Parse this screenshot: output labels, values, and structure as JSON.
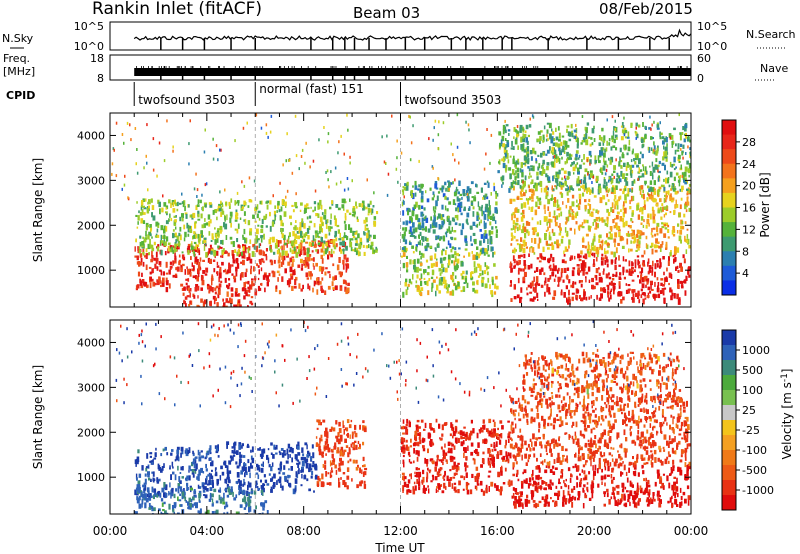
{
  "header": {
    "title": "Rankin Inlet (fitACF)",
    "beam": "Beam 03",
    "date": "08/Feb/2015"
  },
  "noise_panel": {
    "left_label": "N.Sky",
    "left_ticks": [
      "10^5",
      "10^0"
    ],
    "right_label": "N.Search",
    "right_ticks": [
      "10^5",
      "10^0"
    ]
  },
  "freq_panel": {
    "left_label_top": "Freq.",
    "left_label_bottom": "[MHz]",
    "left_ticks": [
      "18",
      "8"
    ],
    "right_label": "Nave",
    "right_ticks": [
      "60",
      "0"
    ]
  },
  "cpid": {
    "label": "CPID",
    "segments": [
      {
        "start_hour": 1.0,
        "label": "twofsound 3503"
      },
      {
        "start_hour": 6.0,
        "label": "normal (fast) 151"
      },
      {
        "start_hour": 12.0,
        "label": "twofsound 3503"
      }
    ]
  },
  "chart_data": [
    {
      "type": "heatmap",
      "title": "",
      "xlabel": "Time UT",
      "ylabel": "Slant Range [km]",
      "x_ticks": [
        "00:00",
        "04:00",
        "08:00",
        "12:00",
        "16:00",
        "20:00",
        "00:00"
      ],
      "xlim_hours": [
        0,
        24
      ],
      "ylim_km": [
        180,
        4500
      ],
      "y_ticks": [
        1000,
        2000,
        3000,
        4000
      ],
      "colorbar": {
        "label": "Power [dB]",
        "ticks": [
          "4",
          "8",
          "12",
          "16",
          "20",
          "24",
          "28"
        ],
        "range": [
          0,
          30
        ],
        "colors": [
          "#0a2ee6",
          "#1e5bd8",
          "#2b7fb0",
          "#3d9a70",
          "#55b23a",
          "#9ccc2a",
          "#e6d21e",
          "#f5a01e",
          "#f3731c",
          "#ee4a1a",
          "#e8261a",
          "#e00e10"
        ]
      },
      "regions": [
        {
          "t0": 1.0,
          "t1": 6.8,
          "r0": 600,
          "r1": 1600,
          "value": 27
        },
        {
          "t0": 6.8,
          "t1": 9.8,
          "r0": 550,
          "r1": 1700,
          "value": 24
        },
        {
          "t0": 1.0,
          "t1": 11.0,
          "r0": 1400,
          "r1": 2600,
          "value": 13
        },
        {
          "t0": 3.0,
          "t1": 6.0,
          "r0": 200,
          "r1": 700,
          "value": 26
        },
        {
          "t0": 12.0,
          "t1": 16.0,
          "r0": 500,
          "r1": 1500,
          "value": 14
        },
        {
          "t0": 12.0,
          "t1": 16.0,
          "r0": 1500,
          "r1": 3000,
          "value": 9
        },
        {
          "t0": 16.5,
          "t1": 23.9,
          "r0": 350,
          "r1": 1400,
          "value": 28
        },
        {
          "t0": 16.5,
          "t1": 23.9,
          "r0": 1400,
          "r1": 2900,
          "value": 17
        },
        {
          "t0": 16.0,
          "t1": 24.0,
          "r0": 2800,
          "r1": 4300,
          "value": 11
        }
      ]
    },
    {
      "type": "heatmap",
      "title": "",
      "xlabel": "Time UT",
      "ylabel": "Slant Range [km]",
      "x_ticks": [
        "00:00",
        "04:00",
        "08:00",
        "12:00",
        "16:00",
        "20:00",
        "00:00"
      ],
      "xlim_hours": [
        0,
        24
      ],
      "ylim_km": [
        180,
        4500
      ],
      "y_ticks": [
        1000,
        2000,
        3000,
        4000
      ],
      "colorbar": {
        "label": "Velocity [m s^-1]",
        "ticks": [
          "1000",
          "500",
          "100",
          "25",
          "-25",
          "-100",
          "-500",
          "-1000"
        ],
        "colors": [
          "#1a3aa8",
          "#2e62b8",
          "#3c8a7a",
          "#4caa3c",
          "#78c050",
          "#c8c8c8",
          "#f3c41c",
          "#f4a022",
          "#f07a18",
          "#ee5a16",
          "#e83214",
          "#e00c0c"
        ]
      },
      "regions": [
        {
          "t0": 1.0,
          "t1": 4.0,
          "r0": 600,
          "r1": 1700,
          "value": 300
        },
        {
          "t0": 4.0,
          "t1": 8.5,
          "r0": 700,
          "r1": 1800,
          "value": 600
        },
        {
          "t0": 1.0,
          "t1": 6.5,
          "r0": 200,
          "r1": 800,
          "value": 150
        },
        {
          "t0": 8.5,
          "t1": 10.5,
          "r0": 800,
          "r1": 2300,
          "value": -150
        },
        {
          "t0": 12.0,
          "t1": 16.5,
          "r0": 700,
          "r1": 2300,
          "value": -300
        },
        {
          "t0": 16.5,
          "t1": 23.9,
          "r0": 400,
          "r1": 1300,
          "value": -400
        },
        {
          "t0": 16.5,
          "t1": 23.9,
          "r0": 1300,
          "r1": 2800,
          "value": -120
        },
        {
          "t0": 17.0,
          "t1": 23.5,
          "r0": 2800,
          "r1": 3800,
          "value": -90
        }
      ]
    }
  ]
}
